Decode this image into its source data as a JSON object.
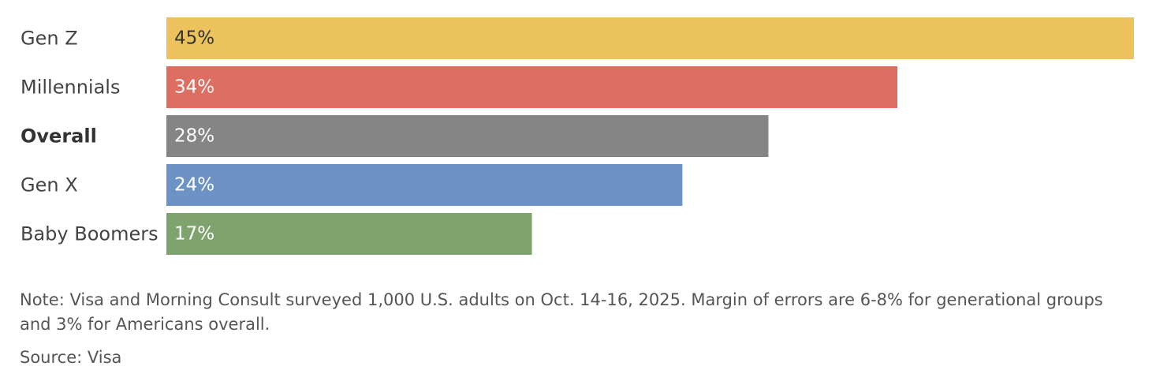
{
  "chart_data": {
    "type": "bar",
    "orientation": "horizontal",
    "categories": [
      "Gen Z",
      "Millennials",
      "Overall",
      "Gen X",
      "Baby Boomers"
    ],
    "values": [
      45,
      34,
      28,
      24,
      17
    ],
    "value_labels": [
      "45%",
      "34%",
      "28%",
      "24%",
      "17%"
    ],
    "bar_colors": [
      "#EBC25C",
      "#DD6E61",
      "#858585",
      "#6D93C6",
      "#7EA36E"
    ],
    "value_label_colors": [
      "#333333",
      "#ffffff",
      "#ffffff",
      "#ffffff",
      "#ffffff"
    ],
    "emphasized_category": "Overall",
    "xlim": [
      0,
      45
    ],
    "grid": false,
    "legend": "none"
  },
  "footer": {
    "note": "Note: Visa and Morning Consult surveyed 1,000 U.S. adults on Oct. 14-16, 2025. Margin of errors are 6-8% for generational groups and 3% for Americans overall.",
    "source": "Source: Visa"
  }
}
